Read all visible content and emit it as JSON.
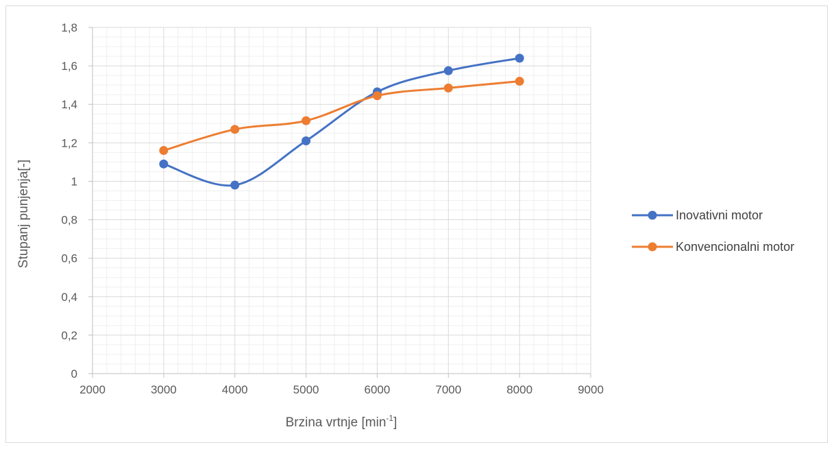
{
  "chart_data": {
    "type": "line",
    "smooth": true,
    "xlabel_main": "Brzina vrtnje [min",
    "xlabel_sup": "-1",
    "xlabel_end": "]",
    "ylabel": "Stupanj punjenja[-]",
    "xlim": [
      2000,
      9000
    ],
    "ylim": [
      0,
      1.8
    ],
    "x_ticks": [
      "2000",
      "3000",
      "4000",
      "5000",
      "6000",
      "7000",
      "8000",
      "9000"
    ],
    "y_ticks": [
      "0",
      "0,2",
      "0,4",
      "0,6",
      "0,8",
      "1",
      "1,2",
      "1,4",
      "1,6",
      "1,8"
    ],
    "grid": true,
    "legend_position": "right",
    "series": [
      {
        "name": "Inovativni motor",
        "color": "#4472c4",
        "x": [
          3000,
          4000,
          5000,
          6000,
          7000,
          8000
        ],
        "y": [
          1.09,
          0.98,
          1.21,
          1.465,
          1.575,
          1.64
        ]
      },
      {
        "name": "Konvencionalni motor",
        "color": "#ed7d31",
        "x": [
          3000,
          4000,
          5000,
          6000,
          7000,
          8000
        ],
        "y": [
          1.16,
          1.27,
          1.315,
          1.445,
          1.485,
          1.52
        ]
      }
    ]
  }
}
